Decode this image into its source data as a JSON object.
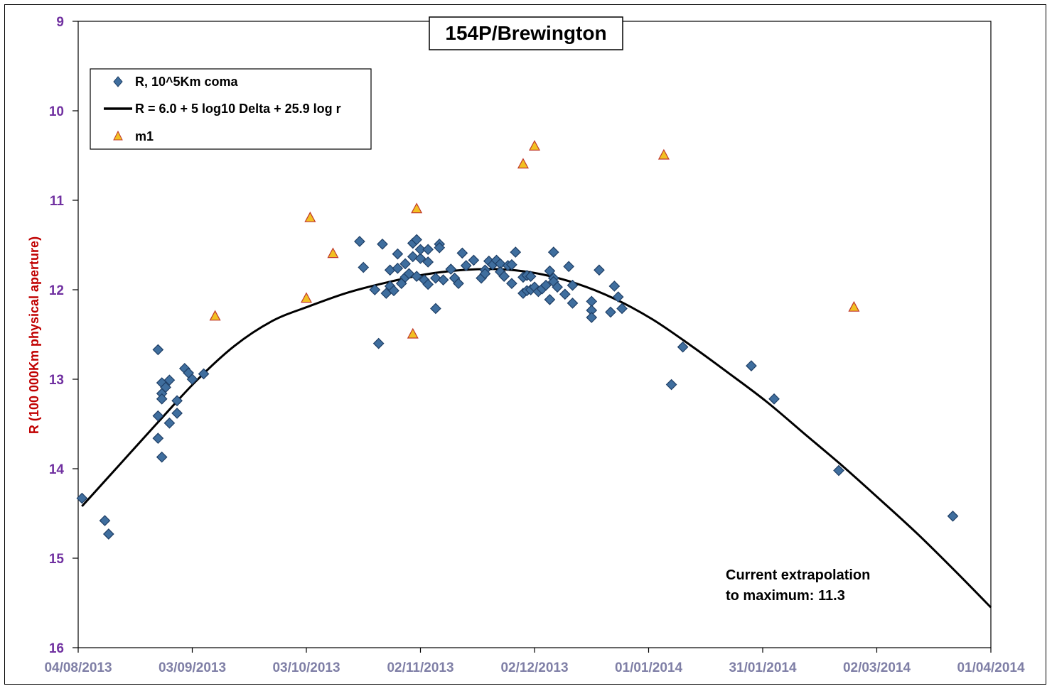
{
  "chart_data": {
    "type": "scatter",
    "title": "154P/Brewington",
    "xlabel": "",
    "ylabel": "R (100 000Km physical  aperture)",
    "x_range": [
      "2013-08-04",
      "2014-04-01"
    ],
    "ylim": [
      9,
      16
    ],
    "y_inverted": true,
    "y_ticks": [
      "9",
      "10",
      "11",
      "12",
      "13",
      "14",
      "15",
      "16"
    ],
    "x_ticks": [
      "04/08/2013",
      "03/09/2013",
      "03/10/2013",
      "02/11/2013",
      "02/12/2013",
      "01/01/2014",
      "31/01/2014",
      "02/03/2014",
      "01/04/2014"
    ],
    "legend": {
      "placement": "top-left",
      "entries": [
        "R, 10^5Km coma",
        "R = 6.0 + 5 log10 Delta + 25.9  log r",
        "m1"
      ]
    },
    "annotation": [
      "Current extrapolation",
      "to maximum: 11.3"
    ],
    "colors": {
      "diamond_fill": "#3f6e9e",
      "diamond_stroke": "#1f3f66",
      "triangle_fill": "#f2c022",
      "triangle_stroke": "#c0392b",
      "curve": "#000000",
      "ytick": "#7030a0",
      "xtick": "#7f7fa6",
      "ylabel": "#c00000"
    },
    "series": [
      {
        "name": "R, 10^5Km coma",
        "marker": "diamond",
        "points": [
          [
            "2013-08-05",
            14.33
          ],
          [
            "2013-08-11",
            14.58
          ],
          [
            "2013-08-12",
            14.73
          ],
          [
            "2013-08-25",
            12.67
          ],
          [
            "2013-08-25",
            13.41
          ],
          [
            "2013-08-25",
            13.66
          ],
          [
            "2013-08-26",
            13.04
          ],
          [
            "2013-08-26",
            13.16
          ],
          [
            "2013-08-26",
            13.22
          ],
          [
            "2013-08-26",
            13.87
          ],
          [
            "2013-08-27",
            13.09
          ],
          [
            "2013-08-28",
            13.01
          ],
          [
            "2013-08-28",
            13.49
          ],
          [
            "2013-08-30",
            13.24
          ],
          [
            "2013-08-30",
            13.38
          ],
          [
            "2013-09-01",
            12.88
          ],
          [
            "2013-09-02",
            12.93
          ],
          [
            "2013-09-03",
            13.0
          ],
          [
            "2013-09-06",
            12.94
          ],
          [
            "2013-10-17",
            11.46
          ],
          [
            "2013-10-18",
            11.75
          ],
          [
            "2013-10-21",
            12.0
          ],
          [
            "2013-10-22",
            12.6
          ],
          [
            "2013-10-23",
            11.49
          ],
          [
            "2013-10-24",
            12.04
          ],
          [
            "2013-10-25",
            11.96
          ],
          [
            "2013-10-25",
            11.78
          ],
          [
            "2013-10-26",
            12.01
          ],
          [
            "2013-10-27",
            11.76
          ],
          [
            "2013-10-27",
            11.6
          ],
          [
            "2013-10-28",
            11.93
          ],
          [
            "2013-10-29",
            11.86
          ],
          [
            "2013-10-29",
            11.71
          ],
          [
            "2013-10-30",
            11.82
          ],
          [
            "2013-10-31",
            11.48
          ],
          [
            "2013-10-31",
            11.63
          ],
          [
            "2013-11-01",
            11.44
          ],
          [
            "2013-11-01",
            11.85
          ],
          [
            "2013-11-02",
            11.65
          ],
          [
            "2013-11-02",
            11.55
          ],
          [
            "2013-11-03",
            11.89
          ],
          [
            "2013-11-04",
            11.69
          ],
          [
            "2013-11-04",
            11.55
          ],
          [
            "2013-11-04",
            11.94
          ],
          [
            "2013-11-06",
            12.21
          ],
          [
            "2013-11-06",
            11.87
          ],
          [
            "2013-11-07",
            11.49
          ],
          [
            "2013-11-07",
            11.53
          ],
          [
            "2013-11-08",
            11.89
          ],
          [
            "2013-11-10",
            11.77
          ],
          [
            "2013-11-11",
            11.87
          ],
          [
            "2013-11-12",
            11.93
          ],
          [
            "2013-11-13",
            11.59
          ],
          [
            "2013-11-14",
            11.73
          ],
          [
            "2013-11-16",
            11.67
          ],
          [
            "2013-11-18",
            11.87
          ],
          [
            "2013-11-19",
            11.78
          ],
          [
            "2013-11-19",
            11.82
          ],
          [
            "2013-11-20",
            11.68
          ],
          [
            "2013-11-21",
            11.72
          ],
          [
            "2013-11-22",
            11.67
          ],
          [
            "2013-11-23",
            11.71
          ],
          [
            "2013-11-23",
            11.8
          ],
          [
            "2013-11-24",
            11.85
          ],
          [
            "2013-11-25",
            11.73
          ],
          [
            "2013-11-26",
            11.93
          ],
          [
            "2013-11-26",
            11.72
          ],
          [
            "2013-11-27",
            11.58
          ],
          [
            "2013-11-29",
            11.86
          ],
          [
            "2013-11-29",
            12.04
          ],
          [
            "2013-11-30",
            11.84
          ],
          [
            "2013-11-30",
            12.01
          ],
          [
            "2013-12-01",
            11.85
          ],
          [
            "2013-12-01",
            12.0
          ],
          [
            "2013-12-02",
            11.97
          ],
          [
            "2013-12-03",
            12.02
          ],
          [
            "2013-12-04",
            11.99
          ],
          [
            "2013-12-05",
            11.95
          ],
          [
            "2013-12-06",
            11.79
          ],
          [
            "2013-12-06",
            12.11
          ],
          [
            "2013-12-07",
            11.58
          ],
          [
            "2013-12-07",
            11.87
          ],
          [
            "2013-12-07",
            11.91
          ],
          [
            "2013-12-08",
            11.97
          ],
          [
            "2013-12-10",
            12.05
          ],
          [
            "2013-12-11",
            11.74
          ],
          [
            "2013-12-12",
            11.95
          ],
          [
            "2013-12-12",
            12.15
          ],
          [
            "2013-12-17",
            12.13
          ],
          [
            "2013-12-17",
            12.23
          ],
          [
            "2013-12-17",
            12.31
          ],
          [
            "2013-12-19",
            11.78
          ],
          [
            "2013-12-22",
            12.25
          ],
          [
            "2013-12-23",
            11.96
          ],
          [
            "2013-12-24",
            12.08
          ],
          [
            "2013-12-25",
            12.21
          ],
          [
            "2014-01-07",
            13.06
          ],
          [
            "2014-01-10",
            12.64
          ],
          [
            "2014-01-28",
            12.85
          ],
          [
            "2014-02-03",
            13.22
          ],
          [
            "2014-02-20",
            14.02
          ],
          [
            "2014-03-22",
            14.53
          ]
        ]
      },
      {
        "name": "R = 6.0 + 5 log10 Delta + 25.9  log r",
        "marker": "line",
        "points": [
          [
            "2013-08-05",
            14.42
          ],
          [
            "2013-08-15",
            13.95
          ],
          [
            "2013-08-25",
            13.48
          ],
          [
            "2013-09-04",
            13.02
          ],
          [
            "2013-09-14",
            12.63
          ],
          [
            "2013-09-24",
            12.35
          ],
          [
            "2013-10-04",
            12.18
          ],
          [
            "2013-10-14",
            12.03
          ],
          [
            "2013-10-24",
            11.92
          ],
          [
            "2013-11-03",
            11.83
          ],
          [
            "2013-11-13",
            11.78
          ],
          [
            "2013-11-23",
            11.77
          ],
          [
            "2013-12-03",
            11.82
          ],
          [
            "2013-12-13",
            11.93
          ],
          [
            "2013-12-23",
            12.1
          ],
          [
            "2014-01-02",
            12.33
          ],
          [
            "2014-01-12",
            12.62
          ],
          [
            "2014-01-22",
            12.93
          ],
          [
            "2014-02-01",
            13.25
          ],
          [
            "2014-02-11",
            13.61
          ],
          [
            "2014-02-21",
            13.97
          ],
          [
            "2014-03-03",
            14.35
          ],
          [
            "2014-03-13",
            14.74
          ],
          [
            "2014-03-23",
            15.16
          ],
          [
            "2014-04-01",
            15.55
          ]
        ]
      },
      {
        "name": "m1",
        "marker": "triangle",
        "points": [
          [
            "2013-09-09",
            12.3
          ],
          [
            "2013-10-03",
            12.1
          ],
          [
            "2013-10-04",
            11.2
          ],
          [
            "2013-10-10",
            11.6
          ],
          [
            "2013-10-31",
            12.5
          ],
          [
            "2013-11-01",
            11.1
          ],
          [
            "2013-11-29",
            10.6
          ],
          [
            "2013-12-02",
            10.4
          ],
          [
            "2014-01-05",
            10.5
          ],
          [
            "2014-02-24",
            12.2
          ]
        ]
      }
    ]
  }
}
